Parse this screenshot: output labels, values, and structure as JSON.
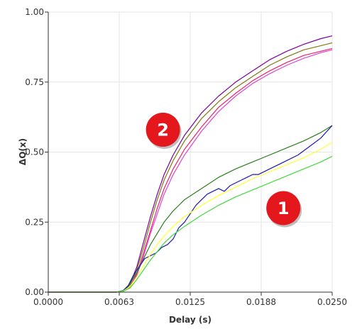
{
  "chart_data": {
    "type": "line",
    "title": "",
    "xlabel": "Delay (s)",
    "ylabel": "ΔQ(x)",
    "xlim": [
      0.0,
      0.025
    ],
    "ylim": [
      0.0,
      1.0
    ],
    "x_ticks": [
      "0.0000",
      "0.0063",
      "0.0125",
      "0.0188",
      "0.0250"
    ],
    "y_ticks": [
      "0.00",
      "0.25",
      "0.50",
      "0.75",
      "1.00"
    ],
    "grid": true,
    "legend": "none",
    "annotations": [
      {
        "label": "2",
        "x": 0.0101,
        "y": 0.58,
        "color": "#e3171c"
      },
      {
        "label": "1",
        "x": 0.0207,
        "y": 0.3,
        "color": "#e3171c"
      }
    ],
    "series": [
      {
        "color": "#7b0099",
        "values": [
          [
            0,
            0
          ],
          [
            0.006,
            0
          ],
          [
            0.0066,
            0.004
          ],
          [
            0.0072,
            0.03
          ],
          [
            0.0078,
            0.09
          ],
          [
            0.0084,
            0.18
          ],
          [
            0.009,
            0.27
          ],
          [
            0.0096,
            0.35
          ],
          [
            0.0102,
            0.42
          ],
          [
            0.011,
            0.49
          ],
          [
            0.012,
            0.56
          ],
          [
            0.0135,
            0.64
          ],
          [
            0.015,
            0.7
          ],
          [
            0.0165,
            0.75
          ],
          [
            0.018,
            0.79
          ],
          [
            0.0195,
            0.83
          ],
          [
            0.021,
            0.86
          ],
          [
            0.0225,
            0.885
          ],
          [
            0.024,
            0.905
          ],
          [
            0.025,
            0.915
          ]
        ]
      },
      {
        "color": "#7c7a10",
        "values": [
          [
            0,
            0
          ],
          [
            0.006,
            0
          ],
          [
            0.0066,
            0.004
          ],
          [
            0.0072,
            0.025
          ],
          [
            0.0078,
            0.08
          ],
          [
            0.0084,
            0.16
          ],
          [
            0.009,
            0.25
          ],
          [
            0.0096,
            0.33
          ],
          [
            0.0102,
            0.4
          ],
          [
            0.011,
            0.47
          ],
          [
            0.012,
            0.54
          ],
          [
            0.0135,
            0.62
          ],
          [
            0.015,
            0.68
          ],
          [
            0.0165,
            0.73
          ],
          [
            0.018,
            0.77
          ],
          [
            0.0195,
            0.81
          ],
          [
            0.021,
            0.84
          ],
          [
            0.0225,
            0.865
          ],
          [
            0.024,
            0.88
          ],
          [
            0.025,
            0.89
          ]
        ]
      },
      {
        "color": "#e8236b",
        "values": [
          [
            0,
            0
          ],
          [
            0.006,
            0
          ],
          [
            0.0066,
            0.003
          ],
          [
            0.0072,
            0.02
          ],
          [
            0.0078,
            0.065
          ],
          [
            0.0084,
            0.14
          ],
          [
            0.009,
            0.22
          ],
          [
            0.0096,
            0.3
          ],
          [
            0.0102,
            0.37
          ],
          [
            0.011,
            0.44
          ],
          [
            0.012,
            0.51
          ],
          [
            0.0135,
            0.59
          ],
          [
            0.015,
            0.66
          ],
          [
            0.0165,
            0.71
          ],
          [
            0.018,
            0.755
          ],
          [
            0.0195,
            0.79
          ],
          [
            0.021,
            0.82
          ],
          [
            0.0225,
            0.845
          ],
          [
            0.024,
            0.86
          ],
          [
            0.025,
            0.87
          ]
        ]
      },
      {
        "color": "#e043d6",
        "values": [
          [
            0,
            0
          ],
          [
            0.006,
            0
          ],
          [
            0.0066,
            0.003
          ],
          [
            0.0072,
            0.018
          ],
          [
            0.0078,
            0.06
          ],
          [
            0.0084,
            0.13
          ],
          [
            0.009,
            0.21
          ],
          [
            0.0096,
            0.28
          ],
          [
            0.0102,
            0.35
          ],
          [
            0.011,
            0.42
          ],
          [
            0.012,
            0.49
          ],
          [
            0.0135,
            0.575
          ],
          [
            0.015,
            0.645
          ],
          [
            0.0165,
            0.7
          ],
          [
            0.018,
            0.745
          ],
          [
            0.0195,
            0.78
          ],
          [
            0.021,
            0.81
          ],
          [
            0.0225,
            0.835
          ],
          [
            0.024,
            0.855
          ],
          [
            0.025,
            0.865
          ]
        ]
      },
      {
        "color": "#2a7f1c",
        "values": [
          [
            0,
            0
          ],
          [
            0.006,
            0
          ],
          [
            0.0066,
            0.006
          ],
          [
            0.0072,
            0.03
          ],
          [
            0.0078,
            0.07
          ],
          [
            0.0084,
            0.12
          ],
          [
            0.009,
            0.17
          ],
          [
            0.0096,
            0.21
          ],
          [
            0.0102,
            0.25
          ],
          [
            0.011,
            0.29
          ],
          [
            0.012,
            0.33
          ],
          [
            0.0135,
            0.37
          ],
          [
            0.015,
            0.41
          ],
          [
            0.0165,
            0.44
          ],
          [
            0.018,
            0.465
          ],
          [
            0.0195,
            0.49
          ],
          [
            0.021,
            0.515
          ],
          [
            0.0225,
            0.54
          ],
          [
            0.024,
            0.57
          ],
          [
            0.025,
            0.595
          ]
        ]
      },
      {
        "color": "#1f17b8",
        "values": [
          [
            0,
            0
          ],
          [
            0.006,
            0
          ],
          [
            0.0066,
            0.005
          ],
          [
            0.007,
            0.02
          ],
          [
            0.0075,
            0.06
          ],
          [
            0.008,
            0.09
          ],
          [
            0.0085,
            0.12
          ],
          [
            0.009,
            0.13
          ],
          [
            0.0095,
            0.14
          ],
          [
            0.01,
            0.16
          ],
          [
            0.0105,
            0.17
          ],
          [
            0.011,
            0.19
          ],
          [
            0.0115,
            0.23
          ],
          [
            0.012,
            0.25
          ],
          [
            0.0125,
            0.28
          ],
          [
            0.013,
            0.31
          ],
          [
            0.0135,
            0.33
          ],
          [
            0.014,
            0.35
          ],
          [
            0.0145,
            0.36
          ],
          [
            0.015,
            0.37
          ],
          [
            0.0155,
            0.36
          ],
          [
            0.016,
            0.38
          ],
          [
            0.0165,
            0.39
          ],
          [
            0.017,
            0.4
          ],
          [
            0.0175,
            0.41
          ],
          [
            0.018,
            0.42
          ],
          [
            0.0185,
            0.42
          ],
          [
            0.019,
            0.43
          ],
          [
            0.0195,
            0.44
          ],
          [
            0.02,
            0.45
          ],
          [
            0.021,
            0.47
          ],
          [
            0.022,
            0.49
          ],
          [
            0.023,
            0.52
          ],
          [
            0.024,
            0.55
          ],
          [
            0.025,
            0.595
          ]
        ]
      },
      {
        "color": "#ffff33",
        "values": [
          [
            0,
            0
          ],
          [
            0.006,
            0
          ],
          [
            0.0066,
            0.004
          ],
          [
            0.0072,
            0.02
          ],
          [
            0.0078,
            0.055
          ],
          [
            0.0084,
            0.095
          ],
          [
            0.009,
            0.135
          ],
          [
            0.0096,
            0.17
          ],
          [
            0.0102,
            0.2
          ],
          [
            0.011,
            0.235
          ],
          [
            0.012,
            0.27
          ],
          [
            0.0135,
            0.31
          ],
          [
            0.015,
            0.345
          ],
          [
            0.0165,
            0.375
          ],
          [
            0.018,
            0.405
          ],
          [
            0.0195,
            0.43
          ],
          [
            0.021,
            0.455
          ],
          [
            0.0225,
            0.48
          ],
          [
            0.024,
            0.51
          ],
          [
            0.025,
            0.535
          ]
        ]
      },
      {
        "color": "#41d93d",
        "values": [
          [
            0,
            0
          ],
          [
            0.006,
            0
          ],
          [
            0.0066,
            0.003
          ],
          [
            0.0072,
            0.015
          ],
          [
            0.0078,
            0.045
          ],
          [
            0.0084,
            0.08
          ],
          [
            0.009,
            0.115
          ],
          [
            0.0096,
            0.145
          ],
          [
            0.0102,
            0.175
          ],
          [
            0.011,
            0.205
          ],
          [
            0.012,
            0.235
          ],
          [
            0.0135,
            0.275
          ],
          [
            0.015,
            0.31
          ],
          [
            0.0165,
            0.34
          ],
          [
            0.018,
            0.365
          ],
          [
            0.0195,
            0.39
          ],
          [
            0.021,
            0.415
          ],
          [
            0.0225,
            0.44
          ],
          [
            0.024,
            0.465
          ],
          [
            0.025,
            0.485
          ]
        ]
      }
    ]
  }
}
